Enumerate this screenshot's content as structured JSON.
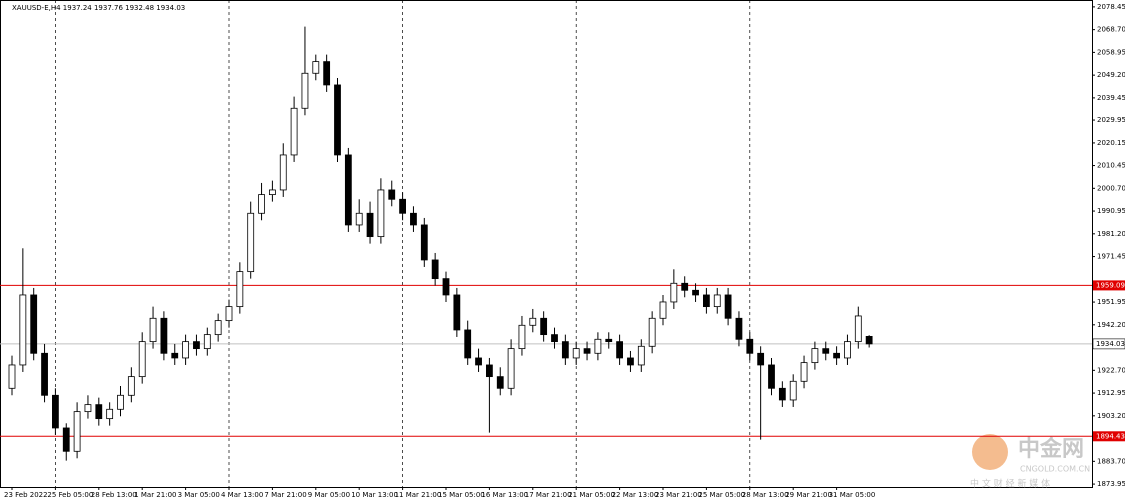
{
  "chart_data": {
    "type": "candlestick",
    "title": "XAUUSD-E,H4  1937.24 1937.76 1932.48 1934.03",
    "categories": [
      "23 Feb 2022",
      null,
      null,
      null,
      "25 Feb 05:00",
      null,
      null,
      null,
      "28 Feb 13:00",
      null,
      null,
      null,
      "1 Mar 21:00",
      null,
      null,
      null,
      "3 Mar 05:00",
      null,
      null,
      null,
      "4 Mar 13:00",
      null,
      null,
      null,
      "7 Mar 21:00",
      null,
      null,
      null,
      "9 Mar 05:00",
      null,
      null,
      null,
      "10 Mar 13:00",
      null,
      null,
      null,
      "11 Mar 21:00",
      null,
      null,
      null,
      "15 Mar 05:00",
      null,
      null,
      null,
      "16 Mar 13:00",
      null,
      null,
      null,
      "17 Mar 21:00",
      null,
      null,
      null,
      "21 Mar 05:00",
      null,
      null,
      null,
      "22 Mar 13:00",
      null,
      null,
      null,
      "23 Mar 21:00",
      null,
      null,
      null,
      "25 Mar 05:00",
      null,
      null,
      null,
      "28 Mar 13:00",
      null,
      null,
      null,
      "29 Mar 21:00",
      null,
      null,
      null,
      "31 Mar 05:00",
      null,
      null,
      null
    ],
    "open": [
      1915,
      1925,
      1955,
      1930,
      1912,
      1898,
      1888,
      1905,
      1908,
      1902,
      1906,
      1912,
      1920,
      1935,
      1945,
      1930,
      1928,
      1935,
      1932,
      1938,
      1944,
      1950,
      1965,
      1990,
      1998,
      2000,
      2015,
      2035,
      2050,
      2055,
      2045,
      2015,
      1985,
      1990,
      1980,
      2000,
      1996,
      1990,
      1985,
      1970,
      1962,
      1955,
      1940,
      1928,
      1925,
      1920,
      1915,
      1932,
      1942,
      1945,
      1938,
      1935,
      1928,
      1932,
      1930,
      1936,
      1935,
      1928,
      1925,
      1933,
      1945,
      1952,
      1960,
      1957,
      1955,
      1950,
      1955,
      1945,
      1936,
      1930,
      1925,
      1915,
      1910,
      1918,
      1926,
      1932,
      1930,
      1928,
      1935,
      1937.24
    ],
    "high": [
      1929,
      1975,
      1958,
      1934,
      1915,
      1900,
      1909,
      1912,
      1911,
      1909,
      1916,
      1924,
      1939,
      1950,
      1948,
      1934,
      1938,
      1938,
      1941,
      1947,
      1953,
      1969,
      1995,
      2003,
      2004,
      2020,
      2040,
      2070,
      2058,
      2058,
      2048,
      2018,
      1996,
      1995,
      2005,
      2004,
      1999,
      1993,
      1988,
      1973,
      1965,
      1958,
      1944,
      1932,
      1928,
      1924,
      1936,
      1946,
      1949,
      1948,
      1941,
      1938,
      1935,
      1935,
      1939,
      1939,
      1938,
      1931,
      1936,
      1948,
      1955,
      1966,
      1963,
      1960,
      1958,
      1958,
      1958,
      1948,
      1939,
      1933,
      1928,
      1918,
      1921,
      1929,
      1935,
      1935,
      1933,
      1938,
      1950,
      1937.76
    ],
    "low": [
      1912,
      1922,
      1927,
      1909,
      1895,
      1884,
      1885,
      1902,
      1899,
      1899,
      1903,
      1909,
      1917,
      1932,
      1927,
      1925,
      1925,
      1929,
      1929,
      1935,
      1941,
      1947,
      1962,
      1987,
      1995,
      1997,
      2012,
      2032,
      2047,
      2042,
      2012,
      1982,
      1982,
      1977,
      1977,
      1993,
      1987,
      1982,
      1967,
      1959,
      1952,
      1937,
      1925,
      1922,
      1896,
      1912,
      1912,
      1929,
      1939,
      1935,
      1932,
      1925,
      1925,
      1927,
      1927,
      1932,
      1925,
      1922,
      1922,
      1930,
      1942,
      1949,
      1954,
      1952,
      1947,
      1947,
      1942,
      1933,
      1927,
      1893,
      1912,
      1907,
      1907,
      1915,
      1923,
      1927,
      1925,
      1925,
      1932,
      1932.48
    ],
    "close": [
      1925,
      1955,
      1930,
      1912,
      1898,
      1888,
      1905,
      1908,
      1902,
      1906,
      1912,
      1920,
      1935,
      1945,
      1930,
      1928,
      1935,
      1932,
      1938,
      1944,
      1950,
      1965,
      1990,
      1998,
      2000,
      2015,
      2035,
      2050,
      2055,
      2045,
      2015,
      1985,
      1990,
      1980,
      2000,
      1996,
      1990,
      1985,
      1970,
      1962,
      1955,
      1940,
      1928,
      1925,
      1920,
      1915,
      1932,
      1942,
      1945,
      1938,
      1935,
      1928,
      1932,
      1930,
      1936,
      1935,
      1928,
      1925,
      1933,
      1945,
      1952,
      1960,
      1957,
      1955,
      1950,
      1955,
      1945,
      1936,
      1930,
      1925,
      1915,
      1910,
      1918,
      1926,
      1932,
      1930,
      1928,
      1935,
      1946,
      1934.03
    ],
    "ylim": [
      1872.7,
      2081.4
    ],
    "yticks": [
      {
        "value": 2078.45,
        "label": "2078.45"
      },
      {
        "value": 2068.7,
        "label": "2068.70"
      },
      {
        "value": 2058.95,
        "label": "2058.95"
      },
      {
        "value": 2049.2,
        "label": "2049.20"
      },
      {
        "value": 2039.45,
        "label": "2039.45"
      },
      {
        "value": 2029.95,
        "label": "2029.95"
      },
      {
        "value": 2020.15,
        "label": "2020.15"
      },
      {
        "value": 2010.45,
        "label": "2010.45"
      },
      {
        "value": 2000.7,
        "label": "2000.70"
      },
      {
        "value": 1990.95,
        "label": "1990.95"
      },
      {
        "value": 1981.2,
        "label": "1981.20"
      },
      {
        "value": 1971.45,
        "label": "1971.45"
      },
      {
        "value": 1951.95,
        "label": "1951.95"
      },
      {
        "value": 1942.2,
        "label": "1942.20"
      },
      {
        "value": 1922.7,
        "label": "1922.70"
      },
      {
        "value": 1912.95,
        "label": "1912.95"
      },
      {
        "value": 1903.2,
        "label": "1903.20"
      },
      {
        "value": 1883.7,
        "label": "1883.70"
      },
      {
        "value": 1873.95,
        "label": "1873.95"
      }
    ],
    "levels": [
      {
        "value": 1959.09,
        "color": "#e00000"
      },
      {
        "value": 1894.43,
        "color": "#e00000"
      }
    ],
    "last_price": {
      "value": 1934.03,
      "color": "#c0c0c0"
    },
    "up_color": "#ffffff",
    "down_color": "#000000",
    "watermark": {
      "logo": "中金网",
      "site": "CNGOLD.COM.CN",
      "slogan": "中 文 财 经 新 媒 体"
    }
  }
}
